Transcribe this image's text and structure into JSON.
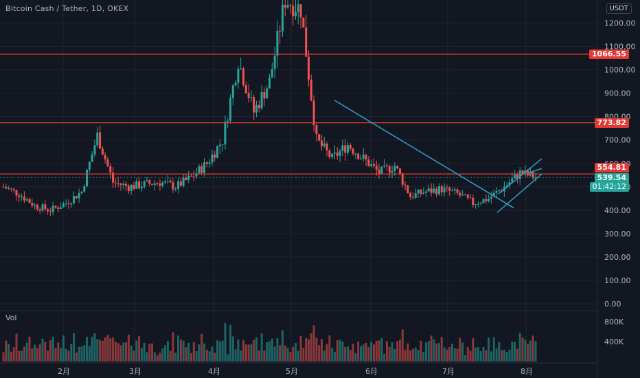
{
  "header": {
    "title": "Bitcoin Cash / Tether, 1D, OKEX",
    "currency": "USDT",
    "volume_label": "Vol"
  },
  "levels": {
    "r1": "1066.55",
    "r2": "773.82",
    "r3": "554.81",
    "last_price": "539.54",
    "countdown": "01:42:12"
  },
  "colors": {
    "up": "#26a69a",
    "down": "#ef5350",
    "level": "#e53935",
    "trend": "#2aa1c9",
    "bg": "#131722",
    "grid": "#1f2433"
  },
  "chart_data": {
    "type": "candlestick",
    "y_axis": {
      "range": [
        0,
        1300
      ],
      "ticks": [
        "0.00",
        "100.00",
        "200.00",
        "300.00",
        "400.00",
        "500.00",
        "600.00",
        "700.00",
        "800.00",
        "900.00",
        "1000.00",
        "1100.00",
        "1200.00"
      ]
    },
    "volume_axis": {
      "ticks": [
        "400K",
        "800K"
      ]
    },
    "x_axis": {
      "ticks": [
        "2月",
        "3月",
        "4月",
        "5月",
        "6月",
        "7月",
        "8月"
      ]
    },
    "horizontal_levels": [
      1066.55,
      773.82,
      554.81
    ],
    "weekly_closes": [
      500,
      470,
      420,
      400,
      430,
      480,
      720,
      520,
      500,
      510,
      520,
      500,
      540,
      600,
      700,
      1040,
      820,
      950,
      1300,
      1260,
      700,
      620,
      680,
      620,
      560,
      590,
      460,
      480,
      490,
      470,
      430,
      450,
      500,
      560,
      540
    ],
    "trendlines": [
      {
        "from": [
          "2021-05-19",
          870
        ],
        "to": [
          "2021-07-23",
          450
        ]
      },
      {
        "from": [
          "2021-07-21",
          390
        ],
        "to": [
          "2021-08-07",
          560
        ]
      },
      {
        "from": [
          "2021-07-21",
          460
        ],
        "to": [
          "2021-08-07",
          620
        ]
      }
    ]
  }
}
